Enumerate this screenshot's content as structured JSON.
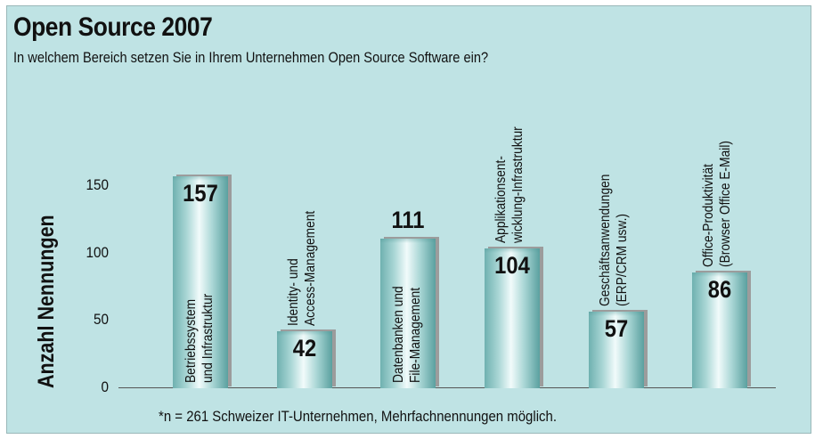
{
  "chart_data": {
    "type": "bar",
    "title": "Open Source 2007",
    "subtitle": "In welchem Bereich setzen Sie in Ihrem Unternehmen Open Source Software ein?",
    "ylabel": "Anzahl Nennungen",
    "xlabel": "",
    "ylim": [
      0,
      160
    ],
    "yticks": [
      "0",
      "50",
      "100",
      "150"
    ],
    "ytick_values": [
      0,
      50,
      100,
      150
    ],
    "categories": [
      [
        "Betriebssystem",
        "und Infrastruktur"
      ],
      [
        "Identity- und",
        "Access-Management"
      ],
      [
        "Datenbanken und",
        "File-Management"
      ],
      [
        "Applikationsent-",
        "wicklung-Infrastruktur"
      ],
      [
        "Geschäftsanwendungen",
        "(ERP/CRM usw.)"
      ],
      [
        "Office-Produktivität",
        "(Browser Office E-Mail)"
      ]
    ],
    "values": [
      157,
      42,
      111,
      104,
      57,
      86
    ],
    "value_labels": [
      "157",
      "42",
      "111",
      "104",
      "57",
      "86"
    ],
    "footnote": "*n = 261 Schweizer IT-Unternehmen, Mehrfachnennungen möglich.",
    "grid": false,
    "legend": "none",
    "colors": {
      "background": "#bfe3e4",
      "bar": "#a9d6d5",
      "shadow": "#9c9c9c"
    }
  }
}
